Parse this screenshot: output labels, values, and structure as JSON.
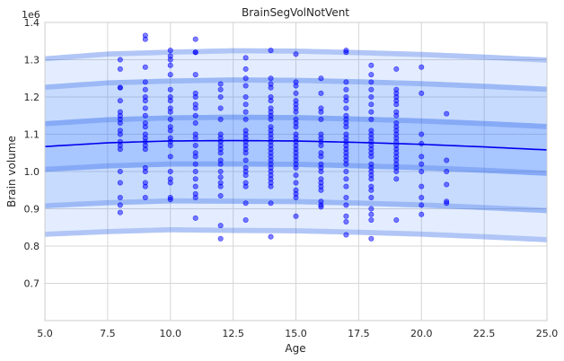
{
  "chart_data": {
    "type": "scatter",
    "title": "BrainSegVolNotVent",
    "xlabel": "Age",
    "ylabel": "Brain volume",
    "y_offset_label": "1e6",
    "xlim": [
      5.0,
      25.0
    ],
    "ylim": [
      0.6,
      1.4
    ],
    "y_scale_multiplier": 1000000,
    "grid": true,
    "x_ticks": [
      5.0,
      7.5,
      10.0,
      12.5,
      15.0,
      17.5,
      20.0,
      22.5,
      25.0
    ],
    "x_tick_labels": [
      "5.0",
      "7.5",
      "10.0",
      "12.5",
      "15.0",
      "17.5",
      "20.0",
      "22.5",
      "25.0"
    ],
    "y_ticks": [
      0.7,
      0.8,
      0.9,
      1.0,
      1.1,
      1.2,
      1.3,
      1.4
    ],
    "y_tick_labels": [
      "0.7",
      "0.8",
      "0.9",
      "1.0",
      "1.1",
      "1.2",
      "1.3",
      "1.4"
    ],
    "colors": {
      "median_line": "#0000ee",
      "points": "#0000ff",
      "band_fill": "#3b7cff",
      "band_edge": "#3060e0",
      "grid": "#d6d6d6",
      "plot_bg": "#ffffff"
    },
    "centile_curve": {
      "x": [
        5,
        7.5,
        10,
        12.5,
        15,
        17.5,
        20,
        22.5,
        25
      ],
      "median": [
        1.067,
        1.077,
        1.082,
        1.083,
        1.082,
        1.078,
        1.073,
        1.066,
        1.058
      ],
      "sd": [
        0.085,
        0.086,
        0.086,
        0.087,
        0.087,
        0.087,
        0.087,
        0.087,
        0.087
      ]
    },
    "bands": [
      {
        "z": 2.85,
        "edge_thickness": 0.16,
        "opacity": 0.14
      },
      {
        "z": 1.95,
        "edge_thickness": 0.16,
        "opacity": 0.16
      },
      {
        "z": 0.8,
        "edge_thickness": 0.16,
        "opacity": 0.22
      }
    ],
    "points": [
      [
        8,
        1.3
      ],
      [
        8,
        1.275
      ],
      [
        8,
        1.225
      ],
      [
        8,
        1.225
      ],
      [
        8,
        1.19
      ],
      [
        8,
        1.16
      ],
      [
        8,
        1.15
      ],
      [
        8,
        1.14
      ],
      [
        8,
        1.13
      ],
      [
        8,
        1.11
      ],
      [
        8,
        1.1
      ],
      [
        8,
        1.08
      ],
      [
        8,
        1.07
      ],
      [
        8,
        1.06
      ],
      [
        8,
        1.0
      ],
      [
        8,
        0.97
      ],
      [
        8,
        0.93
      ],
      [
        8,
        0.91
      ],
      [
        8,
        0.89
      ],
      [
        9,
        1.365
      ],
      [
        9,
        1.355
      ],
      [
        9,
        1.28
      ],
      [
        9,
        1.24
      ],
      [
        9,
        1.22
      ],
      [
        9,
        1.2
      ],
      [
        9,
        1.19
      ],
      [
        9,
        1.17
      ],
      [
        9,
        1.15
      ],
      [
        9,
        1.13
      ],
      [
        9,
        1.12
      ],
      [
        9,
        1.1
      ],
      [
        9,
        1.09
      ],
      [
        9,
        1.08
      ],
      [
        9,
        1.07
      ],
      [
        9,
        1.06
      ],
      [
        9,
        1.01
      ],
      [
        9,
        1.0
      ],
      [
        9,
        0.97
      ],
      [
        9,
        0.96
      ],
      [
        9,
        0.93
      ],
      [
        10,
        1.325
      ],
      [
        10,
        1.31
      ],
      [
        10,
        1.3
      ],
      [
        10,
        1.285
      ],
      [
        10,
        1.26
      ],
      [
        10,
        1.22
      ],
      [
        10,
        1.2
      ],
      [
        10,
        1.19
      ],
      [
        10,
        1.17
      ],
      [
        10,
        1.16
      ],
      [
        10,
        1.14
      ],
      [
        10,
        1.12
      ],
      [
        10,
        1.11
      ],
      [
        10,
        1.09
      ],
      [
        10,
        1.08
      ],
      [
        10,
        1.07
      ],
      [
        10,
        1.04
      ],
      [
        10,
        1.0
      ],
      [
        10,
        0.98
      ],
      [
        10,
        0.97
      ],
      [
        10,
        0.93
      ],
      [
        10,
        0.925
      ],
      [
        11,
        1.355
      ],
      [
        11,
        1.32
      ],
      [
        11,
        1.32
      ],
      [
        11,
        1.26
      ],
      [
        11,
        1.21
      ],
      [
        11,
        1.2
      ],
      [
        11,
        1.18
      ],
      [
        11,
        1.17
      ],
      [
        11,
        1.15
      ],
      [
        11,
        1.13
      ],
      [
        11,
        1.1
      ],
      [
        11,
        1.09
      ],
      [
        11,
        1.07
      ],
      [
        11,
        1.05
      ],
      [
        11,
        1.04
      ],
      [
        11,
        1.02
      ],
      [
        11,
        1.0
      ],
      [
        11,
        0.98
      ],
      [
        11,
        0.96
      ],
      [
        11,
        0.94
      ],
      [
        11,
        0.93
      ],
      [
        11,
        0.875
      ],
      [
        12,
        1.235
      ],
      [
        12,
        1.22
      ],
      [
        12,
        1.2
      ],
      [
        12,
        1.17
      ],
      [
        12,
        1.14
      ],
      [
        12,
        1.1
      ],
      [
        12,
        1.09
      ],
      [
        12,
        1.08
      ],
      [
        12,
        1.07
      ],
      [
        12,
        1.06
      ],
      [
        12,
        1.05
      ],
      [
        12,
        1.03
      ],
      [
        12,
        1.02
      ],
      [
        12,
        1.0
      ],
      [
        12,
        0.985
      ],
      [
        12,
        0.97
      ],
      [
        12,
        0.96
      ],
      [
        12,
        0.935
      ],
      [
        12,
        0.855
      ],
      [
        12,
        0.82
      ],
      [
        13,
        1.305
      ],
      [
        13,
        1.275
      ],
      [
        13,
        1.25
      ],
      [
        13,
        1.23
      ],
      [
        13,
        1.2
      ],
      [
        13,
        1.18
      ],
      [
        13,
        1.16
      ],
      [
        13,
        1.14
      ],
      [
        13,
        1.11
      ],
      [
        13,
        1.1
      ],
      [
        13,
        1.09
      ],
      [
        13,
        1.08
      ],
      [
        13,
        1.07
      ],
      [
        13,
        1.06
      ],
      [
        13,
        1.05
      ],
      [
        13,
        1.03
      ],
      [
        13,
        1.01
      ],
      [
        13,
        1.0
      ],
      [
        13,
        0.99
      ],
      [
        13,
        0.97
      ],
      [
        13,
        0.96
      ],
      [
        13,
        0.915
      ],
      [
        13,
        0.87
      ],
      [
        14,
        1.325
      ],
      [
        14,
        1.25
      ],
      [
        14,
        1.235
      ],
      [
        14,
        1.225
      ],
      [
        14,
        1.2
      ],
      [
        14,
        1.19
      ],
      [
        14,
        1.17
      ],
      [
        14,
        1.16
      ],
      [
        14,
        1.15
      ],
      [
        14,
        1.14
      ],
      [
        14,
        1.12
      ],
      [
        14,
        1.11
      ],
      [
        14,
        1.1
      ],
      [
        14,
        1.09
      ],
      [
        14,
        1.08
      ],
      [
        14,
        1.07
      ],
      [
        14,
        1.06
      ],
      [
        14,
        1.05
      ],
      [
        14,
        1.04
      ],
      [
        14,
        1.03
      ],
      [
        14,
        1.02
      ],
      [
        14,
        1.01
      ],
      [
        14,
        1.0
      ],
      [
        14,
        0.99
      ],
      [
        14,
        0.98
      ],
      [
        14,
        0.97
      ],
      [
        14,
        0.96
      ],
      [
        14,
        0.915
      ],
      [
        14,
        0.825
      ],
      [
        15,
        1.315
      ],
      [
        15,
        1.24
      ],
      [
        15,
        1.23
      ],
      [
        15,
        1.21
      ],
      [
        15,
        1.19
      ],
      [
        15,
        1.18
      ],
      [
        15,
        1.17
      ],
      [
        15,
        1.16
      ],
      [
        15,
        1.14
      ],
      [
        15,
        1.13
      ],
      [
        15,
        1.12
      ],
      [
        15,
        1.1
      ],
      [
        15,
        1.09
      ],
      [
        15,
        1.08
      ],
      [
        15,
        1.07
      ],
      [
        15,
        1.06
      ],
      [
        15,
        1.05
      ],
      [
        15,
        1.04
      ],
      [
        15,
        1.03
      ],
      [
        15,
        1.02
      ],
      [
        15,
        1.01
      ],
      [
        15,
        0.99
      ],
      [
        15,
        0.97
      ],
      [
        15,
        0.95
      ],
      [
        15,
        0.94
      ],
      [
        15,
        0.93
      ],
      [
        15,
        0.88
      ],
      [
        16,
        1.25
      ],
      [
        16,
        1.21
      ],
      [
        16,
        1.17
      ],
      [
        16,
        1.16
      ],
      [
        16,
        1.14
      ],
      [
        16,
        1.1
      ],
      [
        16,
        1.09
      ],
      [
        16,
        1.08
      ],
      [
        16,
        1.07
      ],
      [
        16,
        1.05
      ],
      [
        16,
        1.04
      ],
      [
        16,
        1.02
      ],
      [
        16,
        1.01
      ],
      [
        16,
        1.0
      ],
      [
        16,
        0.98
      ],
      [
        16,
        0.97
      ],
      [
        16,
        0.96
      ],
      [
        16,
        0.95
      ],
      [
        16,
        0.92
      ],
      [
        16,
        0.91
      ],
      [
        16,
        0.905
      ],
      [
        17,
        1.325
      ],
      [
        17,
        1.32
      ],
      [
        17,
        1.24
      ],
      [
        17,
        1.22
      ],
      [
        17,
        1.2
      ],
      [
        17,
        1.19
      ],
      [
        17,
        1.17
      ],
      [
        17,
        1.15
      ],
      [
        17,
        1.14
      ],
      [
        17,
        1.13
      ],
      [
        17,
        1.12
      ],
      [
        17,
        1.1
      ],
      [
        17,
        1.09
      ],
      [
        17,
        1.08
      ],
      [
        17,
        1.07
      ],
      [
        17,
        1.06
      ],
      [
        17,
        1.05
      ],
      [
        17,
        1.04
      ],
      [
        17,
        1.03
      ],
      [
        17,
        1.02
      ],
      [
        17,
        1.0
      ],
      [
        17,
        0.98
      ],
      [
        17,
        0.96
      ],
      [
        17,
        0.93
      ],
      [
        17,
        0.91
      ],
      [
        17,
        0.88
      ],
      [
        17,
        0.865
      ],
      [
        17,
        0.83
      ],
      [
        18,
        1.285
      ],
      [
        18,
        1.26
      ],
      [
        18,
        1.24
      ],
      [
        18,
        1.22
      ],
      [
        18,
        1.2
      ],
      [
        18,
        1.18
      ],
      [
        18,
        1.16
      ],
      [
        18,
        1.14
      ],
      [
        18,
        1.11
      ],
      [
        18,
        1.1
      ],
      [
        18,
        1.09
      ],
      [
        18,
        1.08
      ],
      [
        18,
        1.07
      ],
      [
        18,
        1.06
      ],
      [
        18,
        1.05
      ],
      [
        18,
        1.04
      ],
      [
        18,
        1.02
      ],
      [
        18,
        1.01
      ],
      [
        18,
        1.0
      ],
      [
        18,
        0.99
      ],
      [
        18,
        0.98
      ],
      [
        18,
        0.96
      ],
      [
        18,
        0.95
      ],
      [
        18,
        0.93
      ],
      [
        18,
        0.9
      ],
      [
        18,
        0.885
      ],
      [
        18,
        0.87
      ],
      [
        18,
        0.82
      ],
      [
        19,
        1.275
      ],
      [
        19,
        1.22
      ],
      [
        19,
        1.21
      ],
      [
        19,
        1.2
      ],
      [
        19,
        1.19
      ],
      [
        19,
        1.18
      ],
      [
        19,
        1.16
      ],
      [
        19,
        1.15
      ],
      [
        19,
        1.13
      ],
      [
        19,
        1.12
      ],
      [
        19,
        1.11
      ],
      [
        19,
        1.1
      ],
      [
        19,
        1.09
      ],
      [
        19,
        1.08
      ],
      [
        19,
        1.07
      ],
      [
        19,
        1.06
      ],
      [
        19,
        1.05
      ],
      [
        19,
        1.04
      ],
      [
        19,
        1.03
      ],
      [
        19,
        1.02
      ],
      [
        19,
        1.01
      ],
      [
        19,
        1.0
      ],
      [
        19,
        0.98
      ],
      [
        19,
        0.87
      ],
      [
        20,
        1.28
      ],
      [
        20,
        1.21
      ],
      [
        20,
        1.1
      ],
      [
        20,
        1.075
      ],
      [
        20,
        1.04
      ],
      [
        20,
        1.02
      ],
      [
        20,
        1.0
      ],
      [
        20,
        0.96
      ],
      [
        20,
        0.93
      ],
      [
        20,
        0.91
      ],
      [
        20,
        0.885
      ],
      [
        21,
        1.155
      ],
      [
        21,
        1.03
      ],
      [
        21,
        1.0
      ],
      [
        21,
        0.965
      ],
      [
        21,
        0.92
      ],
      [
        21,
        0.915
      ]
    ]
  }
}
